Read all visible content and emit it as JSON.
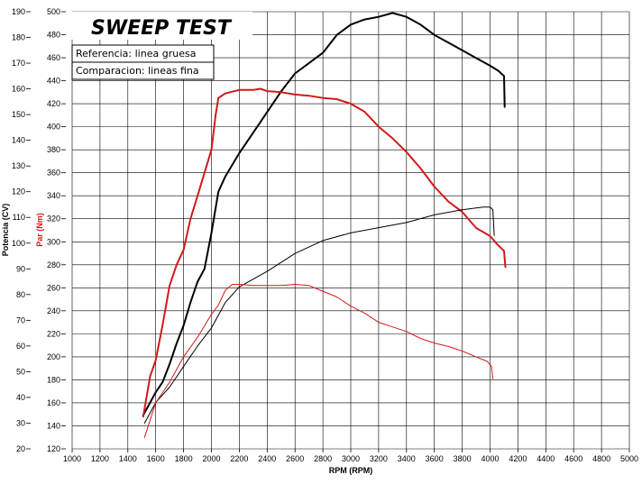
{
  "chart_data": {
    "type": "line",
    "title": "SWEEP TEST",
    "legend": [
      "Referencia: linea gruesa",
      "Comparacion: lineas fina"
    ],
    "xlabel": "RPM (RPM)",
    "ylabel_left": "Potencia (CV)",
    "ylabel_right": "Par (Nm)",
    "xlim": [
      1000,
      5000
    ],
    "ylim_left": [
      20,
      190
    ],
    "ylim_right": [
      120,
      500
    ],
    "xticks": [
      1000,
      1200,
      1400,
      1600,
      1800,
      2000,
      2200,
      2400,
      2600,
      2800,
      3000,
      3200,
      3400,
      3600,
      3800,
      4000,
      4200,
      4400,
      4600,
      4800,
      5000
    ],
    "yticks_left": [
      20,
      30,
      40,
      50,
      60,
      70,
      80,
      90,
      100,
      110,
      120,
      130,
      140,
      150,
      160,
      170,
      180,
      190
    ],
    "yticks_right": [
      120,
      140,
      160,
      180,
      200,
      220,
      240,
      260,
      280,
      300,
      320,
      340,
      360,
      380,
      400,
      420,
      440,
      460,
      480,
      500
    ],
    "colors": {
      "power": "#000000",
      "torque": "#d11a1a",
      "grid": "#000000"
    },
    "series": [
      {
        "name": "Potencia referencia",
        "axis": "left",
        "color": "#000000",
        "width": "thick",
        "x": [
          1510,
          1560,
          1600,
          1650,
          1700,
          1750,
          1800,
          1850,
          1900,
          1950,
          2000,
          2050,
          2100,
          2200,
          2300,
          2400,
          2500,
          2600,
          2700,
          2800,
          2900,
          3000,
          3100,
          3200,
          3300,
          3400,
          3500,
          3600,
          3700,
          3800,
          3900,
          4000,
          4060,
          4100,
          4105
        ],
        "y": [
          33,
          38,
          42,
          46,
          53,
          61,
          68,
          77,
          85,
          90,
          104,
          120,
          126,
          135,
          143,
          151,
          159,
          166,
          170,
          174,
          181,
          185,
          187,
          188,
          189.5,
          188,
          185,
          181,
          178,
          175,
          172,
          169,
          167,
          165,
          153
        ]
      },
      {
        "name": "Par referencia",
        "axis": "right",
        "color": "#d11a1a",
        "width": "thick",
        "x": [
          1510,
          1560,
          1600,
          1650,
          1700,
          1750,
          1800,
          1850,
          1900,
          1950,
          2000,
          2030,
          2050,
          2100,
          2200,
          2300,
          2350,
          2400,
          2500,
          2600,
          2700,
          2800,
          2900,
          3000,
          3100,
          3200,
          3300,
          3400,
          3500,
          3600,
          3700,
          3800,
          3900,
          4000,
          4050,
          4100,
          4110
        ],
        "y": [
          148,
          183,
          197,
          228,
          262,
          280,
          293,
          320,
          340,
          360,
          380,
          410,
          425,
          429,
          432,
          432,
          433,
          431,
          430,
          428,
          427,
          425,
          424,
          420,
          413,
          400,
          390,
          378,
          364,
          348,
          335,
          326,
          312,
          305,
          298,
          292,
          278
        ]
      },
      {
        "name": "Potencia comparacion",
        "axis": "left",
        "color": "#000000",
        "width": "thin",
        "x": [
          1520,
          1600,
          1700,
          1800,
          1900,
          2000,
          2100,
          2200,
          2400,
          2600,
          2800,
          3000,
          3200,
          3400,
          3600,
          3800,
          3950,
          4000,
          4020,
          4030
        ],
        "y": [
          30,
          38,
          44,
          52,
          60,
          67,
          77,
          83,
          89,
          96,
          101,
          104,
          106,
          108,
          111,
          113,
          114,
          114,
          113,
          103
        ]
      },
      {
        "name": "Par comparacion",
        "axis": "right",
        "color": "#d11a1a",
        "width": "thin",
        "x": [
          1520,
          1600,
          1700,
          1800,
          1900,
          2000,
          2050,
          2100,
          2150,
          2200,
          2300,
          2400,
          2500,
          2600,
          2700,
          2800,
          2900,
          3000,
          3100,
          3200,
          3300,
          3400,
          3500,
          3600,
          3700,
          3800,
          3900,
          3980,
          4000,
          4010,
          4020
        ],
        "y": [
          130,
          160,
          178,
          200,
          217,
          237,
          245,
          258,
          263,
          263,
          262,
          262,
          262,
          263,
          262,
          257,
          252,
          244,
          238,
          230,
          226,
          222,
          216,
          212,
          209,
          205,
          200,
          196,
          193,
          192,
          181
        ]
      }
    ]
  }
}
